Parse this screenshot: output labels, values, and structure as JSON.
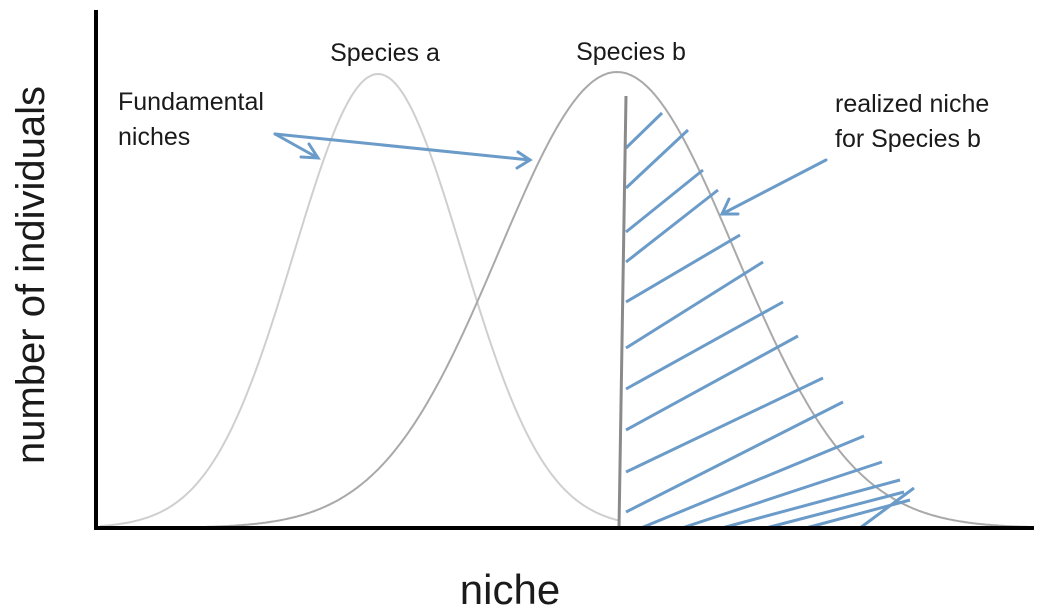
{
  "labels": {
    "species_a": "Species a",
    "species_b": "Species b",
    "fundamental_1": "Fundamental",
    "fundamental_2": "niches",
    "realized_1": "realized niche",
    "realized_2": "for Species b",
    "x_axis": "niche",
    "y_axis": "number of individuals"
  },
  "colors": {
    "axis": "#000000",
    "curve_a": "#cfcfcf",
    "curve_b": "#a9a9a9",
    "hatch": "#6b9bc8",
    "arrow": "#6b9bc8",
    "divider": "#8a8a8a"
  }
}
